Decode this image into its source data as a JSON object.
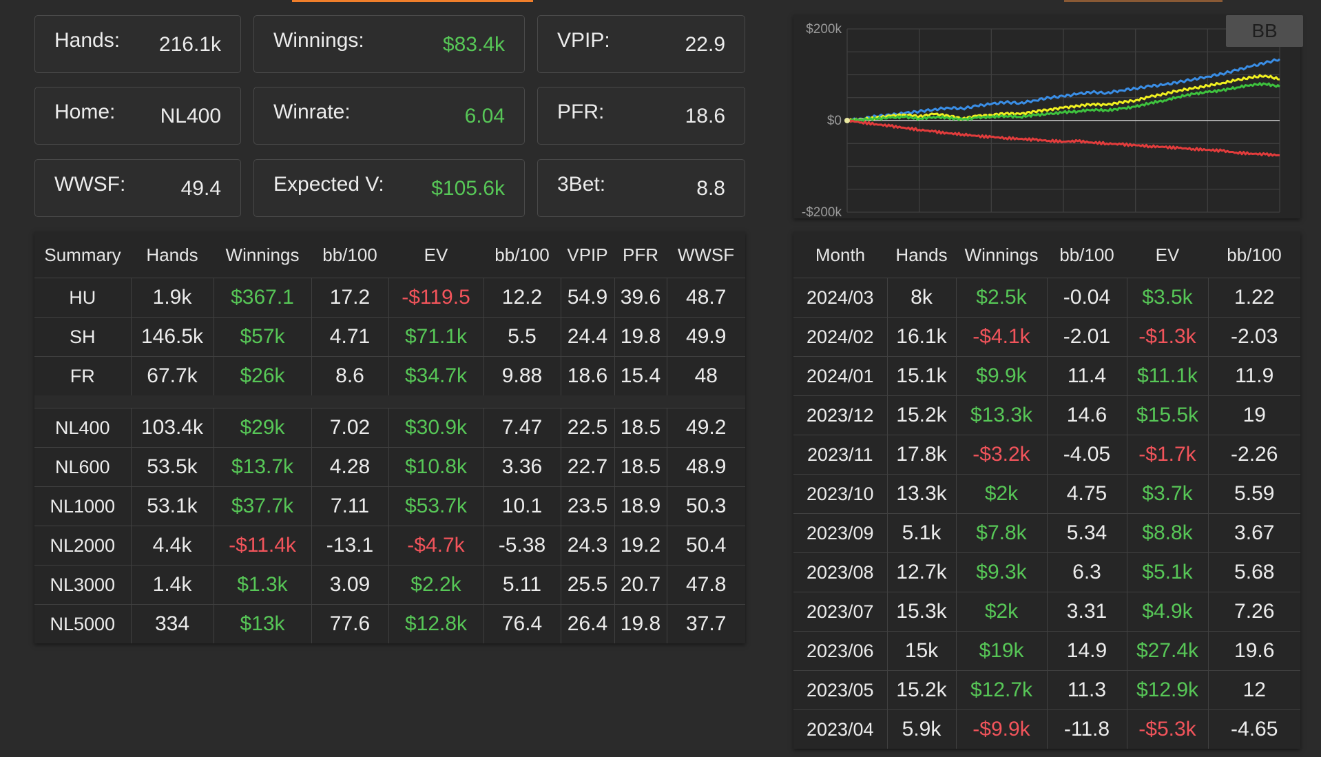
{
  "stats": {
    "hands": {
      "label": "Hands:",
      "value": "216.1k"
    },
    "winnings": {
      "label": "Winnings:",
      "value": "$83.4k"
    },
    "vpip": {
      "label": "VPIP:",
      "value": "22.9"
    },
    "home": {
      "label": "Home:",
      "value": "NL400"
    },
    "winrate": {
      "label": "Winrate:",
      "value": "6.04"
    },
    "pfr": {
      "label": "PFR:",
      "value": "18.6"
    },
    "wwsf": {
      "label": "WWSF:",
      "value": "49.4"
    },
    "expected_v": {
      "label": "Expected V:",
      "value": "$105.6k"
    },
    "threebet": {
      "label": "3Bet:",
      "value": "8.8"
    }
  },
  "summary": {
    "headers": [
      "Summary",
      "Hands",
      "Winnings",
      "bb/100",
      "EV",
      "bb/100",
      "VPIP",
      "PFR",
      "WWSF"
    ],
    "rows": [
      [
        "HU",
        "1.9k",
        "$367.1",
        "17.2",
        "-$119.5",
        "12.2",
        "54.9",
        "39.6",
        "48.7"
      ],
      [
        "SH",
        "146.5k",
        "$57k",
        "4.71",
        "$71.1k",
        "5.5",
        "24.4",
        "19.8",
        "49.9"
      ],
      [
        "FR",
        "67.7k",
        "$26k",
        "8.6",
        "$34.7k",
        "9.88",
        "18.6",
        "15.4",
        "48"
      ],
      [
        "NL400",
        "103.4k",
        "$29k",
        "7.02",
        "$30.9k",
        "7.47",
        "22.5",
        "18.5",
        "49.2"
      ],
      [
        "NL600",
        "53.5k",
        "$13.7k",
        "4.28",
        "$10.8k",
        "3.36",
        "22.7",
        "18.5",
        "48.9"
      ],
      [
        "NL1000",
        "53.1k",
        "$37.7k",
        "7.11",
        "$53.7k",
        "10.1",
        "23.5",
        "18.9",
        "50.3"
      ],
      [
        "NL2000",
        "4.4k",
        "-$11.4k",
        "-13.1",
        "-$4.7k",
        "-5.38",
        "24.3",
        "19.2",
        "50.4"
      ],
      [
        "NL3000",
        "1.4k",
        "$1.3k",
        "3.09",
        "$2.2k",
        "5.11",
        "25.5",
        "20.7",
        "47.8"
      ],
      [
        "NL5000",
        "334",
        "$13k",
        "77.6",
        "$12.8k",
        "76.4",
        "26.4",
        "19.8",
        "37.7"
      ]
    ]
  },
  "monthly": {
    "headers": [
      "Month",
      "Hands",
      "Winnings",
      "bb/100",
      "EV",
      "bb/100"
    ],
    "rows": [
      [
        "2024/03",
        "8k",
        "$2.5k",
        "-0.04",
        "$3.5k",
        "1.22"
      ],
      [
        "2024/02",
        "16.1k",
        "-$4.1k",
        "-2.01",
        "-$1.3k",
        "-2.03"
      ],
      [
        "2024/01",
        "15.1k",
        "$9.9k",
        "11.4",
        "$11.1k",
        "11.9"
      ],
      [
        "2023/12",
        "15.2k",
        "$13.3k",
        "14.6",
        "$15.5k",
        "19"
      ],
      [
        "2023/11",
        "17.8k",
        "-$3.2k",
        "-4.05",
        "-$1.7k",
        "-2.26"
      ],
      [
        "2023/10",
        "13.3k",
        "$2k",
        "4.75",
        "$3.7k",
        "5.59"
      ],
      [
        "2023/09",
        "5.1k",
        "$7.8k",
        "5.34",
        "$8.8k",
        "3.67"
      ],
      [
        "2023/08",
        "12.7k",
        "$9.3k",
        "6.3",
        "$5.1k",
        "5.68"
      ],
      [
        "2023/07",
        "15.3k",
        "$2k",
        "3.31",
        "$4.9k",
        "7.26"
      ],
      [
        "2023/06",
        "15k",
        "$19k",
        "14.9",
        "$27.4k",
        "19.6"
      ],
      [
        "2023/05",
        "15.2k",
        "$12.7k",
        "11.3",
        "$12.9k",
        "12"
      ],
      [
        "2023/04",
        "5.9k",
        "-$9.9k",
        "-11.8",
        "-$5.3k",
        "-4.65"
      ]
    ]
  },
  "colors": {
    "positive": "#57c757",
    "negative": "#f2545b"
  },
  "chart_data": {
    "type": "line",
    "title": "",
    "yticks": [
      "$200k",
      "$0",
      "-$200k"
    ],
    "ylim": [
      -200000,
      200000
    ],
    "x": [
      0,
      1,
      2,
      3,
      4,
      5,
      6,
      7,
      8,
      9,
      10,
      11,
      12,
      13,
      14,
      15,
      16,
      17,
      18,
      19,
      20,
      21,
      22,
      23,
      24,
      25,
      26,
      27,
      28,
      29,
      30
    ],
    "grid": true,
    "button_label": "BB",
    "series": [
      {
        "color": "#3a8ee6",
        "values": [
          0,
          4000,
          9000,
          12000,
          16000,
          20000,
          24000,
          28000,
          26000,
          32000,
          36000,
          40000,
          38000,
          44000,
          50000,
          53000,
          58000,
          62000,
          60000,
          66000,
          70000,
          75000,
          78000,
          84000,
          90000,
          96000,
          102000,
          110000,
          118000,
          126000,
          134000
        ]
      },
      {
        "color": "#f0f020",
        "values": [
          0,
          3000,
          6000,
          10000,
          13000,
          9000,
          14000,
          11000,
          4000,
          10000,
          12000,
          16000,
          14000,
          20000,
          24000,
          28000,
          32000,
          36000,
          34000,
          40000,
          44000,
          52000,
          58000,
          66000,
          70000,
          76000,
          82000,
          88000,
          94000,
          98000,
          90000
        ]
      },
      {
        "color": "#3ec23e",
        "values": [
          0,
          2000,
          4000,
          6000,
          8000,
          4000,
          8000,
          6000,
          2000,
          6000,
          8000,
          10000,
          8000,
          12000,
          14000,
          18000,
          20000,
          24000,
          22000,
          26000,
          30000,
          38000,
          44000,
          52000,
          58000,
          62000,
          66000,
          72000,
          78000,
          80000,
          74000
        ]
      },
      {
        "color": "#e23c3c",
        "values": [
          0,
          -4000,
          -8000,
          -12000,
          -16000,
          -20000,
          -24000,
          -28000,
          -30000,
          -34000,
          -36000,
          -38000,
          -40000,
          -42000,
          -44000,
          -46000,
          -45000,
          -48000,
          -50000,
          -52000,
          -54000,
          -56000,
          -58000,
          -60000,
          -62000,
          -64000,
          -66000,
          -70000,
          -72000,
          -74000,
          -76000
        ]
      }
    ]
  }
}
